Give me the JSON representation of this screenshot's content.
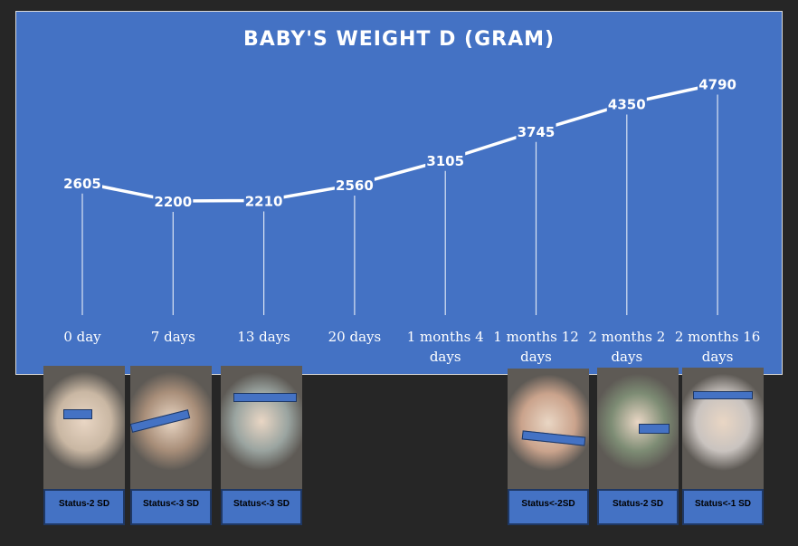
{
  "chart_data": {
    "type": "line",
    "title": "BABY'S WEIGHT D (GRAM)",
    "categories": [
      "0 day",
      "7 days",
      "13 days",
      "20 days",
      "1 months 4 days",
      "1 months 12 days",
      "2 months 2 days",
      "2 months 16 days"
    ],
    "values": [
      2605,
      2200,
      2210,
      2560,
      3105,
      3745,
      4350,
      4790
    ],
    "ylim": [
      0,
      6000
    ],
    "grid": false,
    "drop_lines": true,
    "data_labels": true,
    "colors": {
      "background": "#4472c4",
      "line": "#ffffff",
      "text": "#ffffff"
    }
  },
  "photos": [
    {
      "id": "photo-1",
      "status": "Status-2 SD",
      "tone": "#c9b7a3"
    },
    {
      "id": "photo-2",
      "status": "Status<-3 SD",
      "tone": "#a88e79"
    },
    {
      "id": "photo-3",
      "status": "Status<-3 SD",
      "tone": "#9aa4a0"
    },
    {
      "id": "photo-4",
      "status": "Status<-2SD",
      "tone": "#caa38c"
    },
    {
      "id": "photo-5",
      "status": "Status-2 SD",
      "tone": "#7d8c74"
    },
    {
      "id": "photo-6",
      "status": "Status<-1 SD",
      "tone": "#c9c3bf"
    }
  ]
}
